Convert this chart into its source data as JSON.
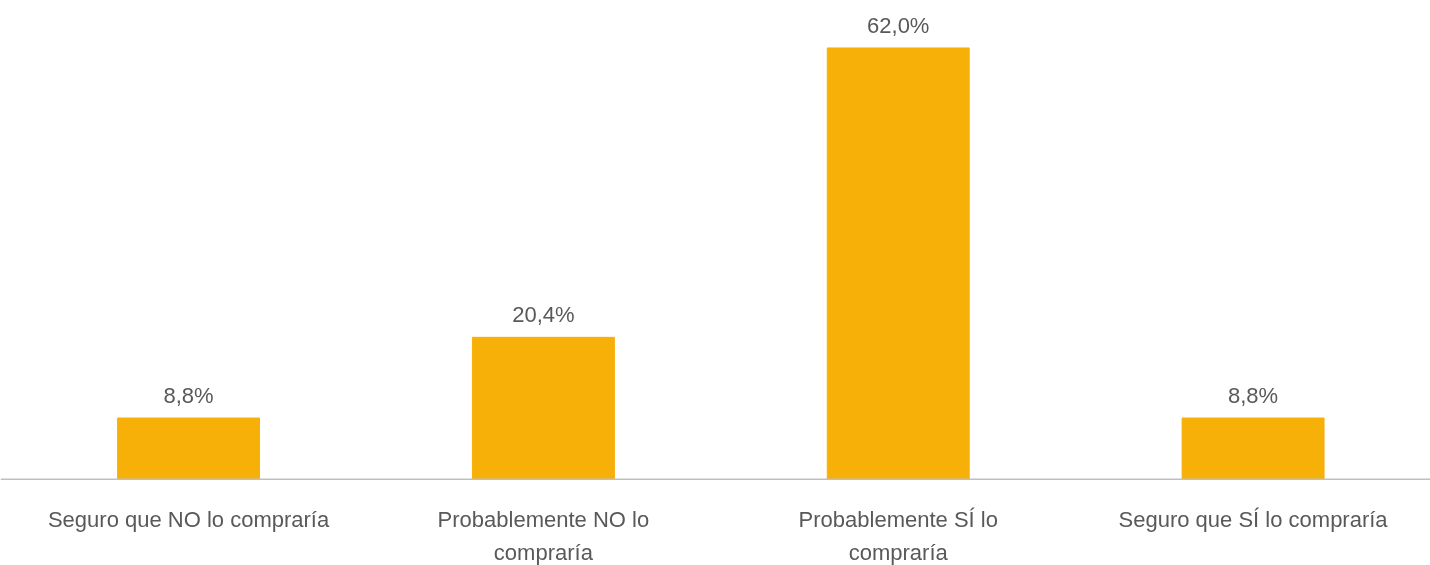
{
  "chart_data": {
    "type": "bar",
    "categories": [
      "Seguro que NO lo compraría",
      "Probablemente NO lo\ncompraría",
      "Probablemente SÍ lo\ncompraría",
      "Seguro que SÍ lo compraría"
    ],
    "values": [
      8.8,
      20.4,
      62.0,
      8.8
    ],
    "value_labels": [
      "8,8%",
      "20,4%",
      "62,0%",
      "8,8%"
    ],
    "color": "#f7b007"
  }
}
